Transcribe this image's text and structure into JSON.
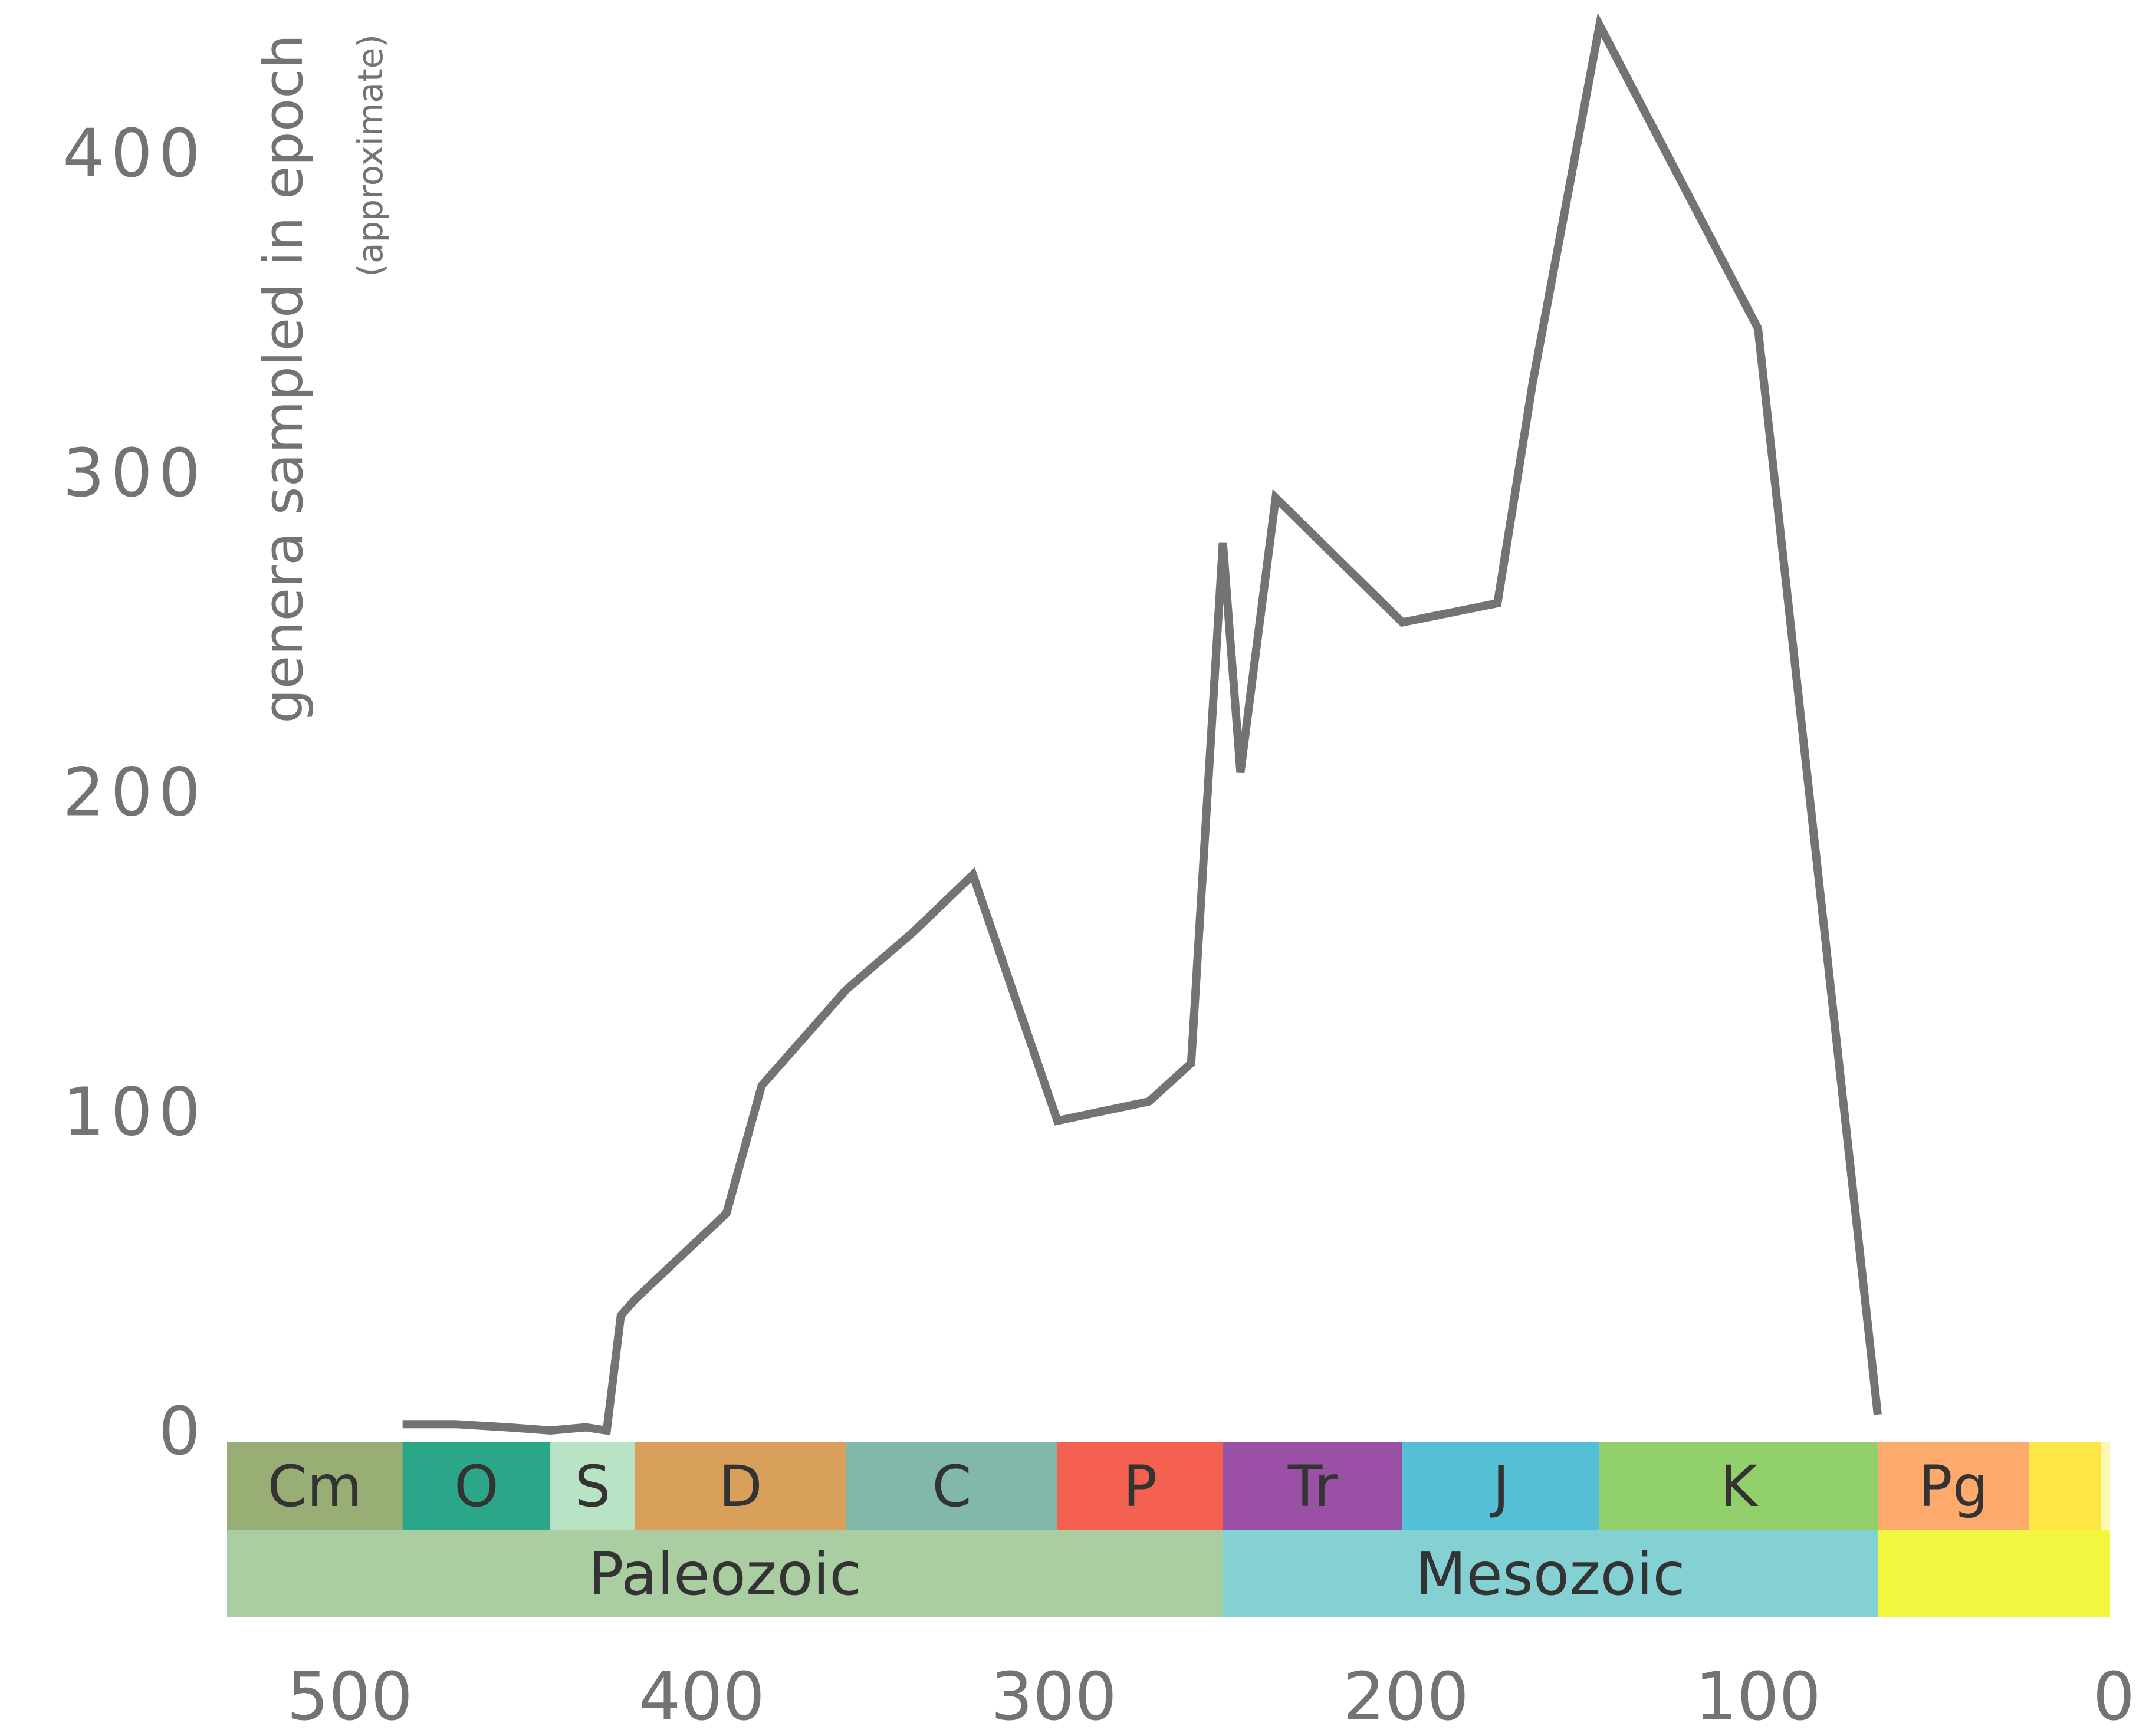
{
  "chart_data": {
    "type": "line",
    "title": "",
    "xlabel": "",
    "ylabel": "genera sampled in epoch",
    "ylabel_note": "(approximate)",
    "xlim": [
      540,
      0
    ],
    "ylim": [
      0,
      440
    ],
    "x_ticks": [
      "500",
      "400",
      "300",
      "200",
      "100",
      "0"
    ],
    "x_tick_values": [
      500,
      400,
      300,
      200,
      100,
      0
    ],
    "y_ticks": [
      "0",
      "100",
      "200",
      "300",
      "400"
    ],
    "y_tick_values": [
      0,
      100,
      200,
      300,
      400
    ],
    "grid": false,
    "line_color": "#737373",
    "series": [
      {
        "x": [
          485,
          470,
          455,
          443,
          433,
          427,
          423,
          419,
          393,
          383,
          359,
          340,
          323,
          299,
          273,
          261,
          252,
          247,
          237,
          201,
          174,
          164,
          145,
          100,
          66
        ],
        "y": [
          2,
          2,
          1,
          0,
          1,
          0,
          36,
          41,
          68,
          108,
          138,
          156,
          174,
          97,
          103,
          115,
          278,
          206,
          292,
          253,
          259,
          328,
          440,
          345,
          5
        ]
      }
    ],
    "periods": [
      {
        "label": "Cm",
        "start": 541,
        "end": 485,
        "color": "#98ae74"
      },
      {
        "label": "O",
        "start": 485,
        "end": 443,
        "color": "#2ba689"
      },
      {
        "label": "S",
        "start": 443,
        "end": 419,
        "color": "#b8e3c4"
      },
      {
        "label": "D",
        "start": 419,
        "end": 359,
        "color": "#d8a05b"
      },
      {
        "label": "C",
        "start": 359,
        "end": 299,
        "color": "#82b7ab"
      },
      {
        "label": "P",
        "start": 299,
        "end": 252,
        "color": "#f46150"
      },
      {
        "label": "Tr",
        "start": 252,
        "end": 201,
        "color": "#9a50a5"
      },
      {
        "label": "J",
        "start": 201,
        "end": 145,
        "color": "#55bfd5"
      },
      {
        "label": "K",
        "start": 145,
        "end": 66,
        "color": "#92d06b"
      },
      {
        "label": "Pg",
        "start": 66,
        "end": 23,
        "color": "#fdaa6c"
      },
      {
        "label": "",
        "start": 23,
        "end": 2.6,
        "color": "#fee645"
      },
      {
        "label": "",
        "start": 2.6,
        "end": 0,
        "color": "#fef7b4"
      }
    ],
    "eras": [
      {
        "label": "Paleozoic",
        "start": 541,
        "end": 252,
        "color": "#aacda1"
      },
      {
        "label": "Mesozoic",
        "start": 252,
        "end": 66,
        "color": "#84d1d3"
      },
      {
        "label": "",
        "start": 66,
        "end": 0,
        "color": "#f2f63e"
      }
    ]
  }
}
